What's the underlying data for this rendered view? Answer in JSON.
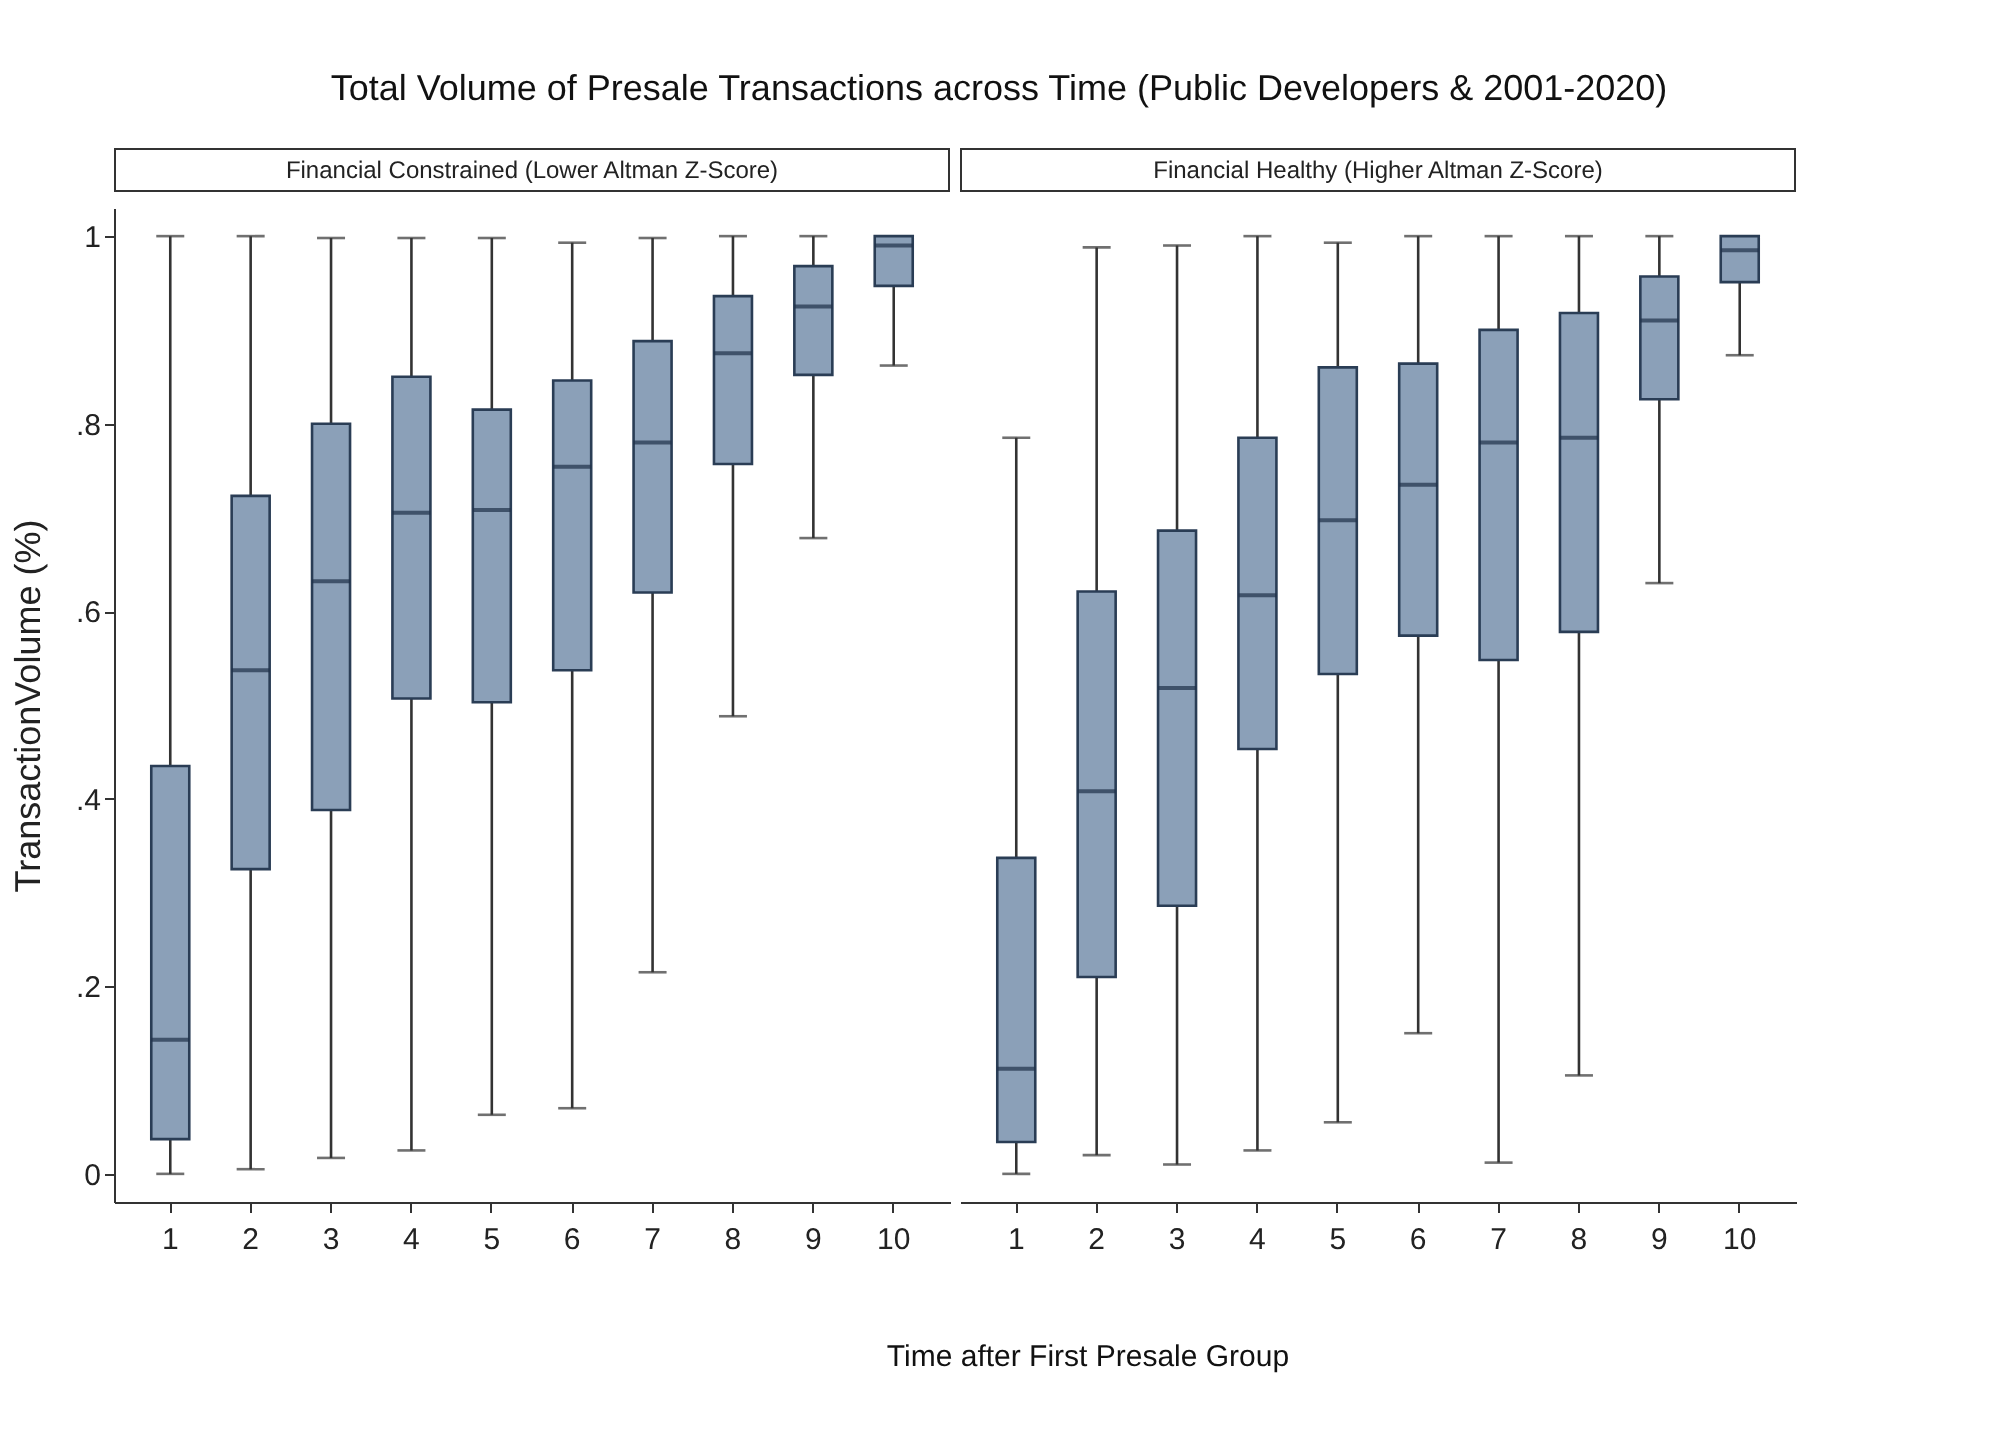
{
  "chart_data": [
    {
      "type": "box",
      "title": "Total Volume of Presale Transactions across Time (Public Developers & 2001-2020)",
      "subtitle": "Financial Constrained (Lower Altman Z-Score)",
      "xlabel": "Time after First Presale Group",
      "ylabel": "TransactionVolume (%)",
      "color": "#8ba0b8",
      "categories": [
        "1",
        "2",
        "3",
        "4",
        "5",
        "6",
        "7",
        "8",
        "9",
        "10"
      ],
      "ylim": [
        -0.03,
        1.03
      ],
      "yticks": [
        0,
        {
          "value": 0.2,
          "label": ".2"
        },
        {
          "value": 0.4,
          "label": ".4"
        },
        {
          "value": 0.6,
          "label": ".6"
        },
        {
          "value": 0.8,
          "label": ".8"
        },
        1
      ],
      "grid": false,
      "boxes": [
        {
          "low": 0,
          "q1": 0.037,
          "median": 0.143,
          "q3": 0.435,
          "high": 1
        },
        {
          "low": 0.005,
          "q1": 0.325,
          "median": 0.537,
          "q3": 0.723,
          "high": 1
        },
        {
          "low": 0.017,
          "q1": 0.388,
          "median": 0.632,
          "q3": 0.8,
          "high": 0.998
        },
        {
          "low": 0.025,
          "q1": 0.507,
          "median": 0.705,
          "q3": 0.85,
          "high": 0.998
        },
        {
          "low": 0.063,
          "q1": 0.503,
          "median": 0.708,
          "q3": 0.815,
          "high": 0.998
        },
        {
          "low": 0.07,
          "q1": 0.537,
          "median": 0.754,
          "q3": 0.846,
          "high": 0.993
        },
        {
          "low": 0.215,
          "q1": 0.62,
          "median": 0.78,
          "q3": 0.888,
          "high": 0.998
        },
        {
          "low": 0.488,
          "q1": 0.757,
          "median": 0.875,
          "q3": 0.936,
          "high": 1
        },
        {
          "low": 0.678,
          "q1": 0.852,
          "median": 0.925,
          "q3": 0.968,
          "high": 1
        },
        {
          "low": 0.862,
          "q1": 0.947,
          "median": 0.99,
          "q3": 1,
          "high": 1
        }
      ]
    },
    {
      "type": "box",
      "subtitle": "Financial Healthy (Higher Altman Z-Score)",
      "color": "#8ba0b8",
      "categories": [
        "1",
        "2",
        "3",
        "4",
        "5",
        "6",
        "7",
        "8",
        "9",
        "10"
      ],
      "ylim": [
        -0.03,
        1.03
      ],
      "grid": false,
      "tick_labels": "x",
      "boxes": [
        {
          "low": 0,
          "q1": 0.034,
          "median": 0.112,
          "q3": 0.337,
          "high": 0.785
        },
        {
          "low": 0.02,
          "q1": 0.21,
          "median": 0.408,
          "q3": 0.621,
          "high": 0.988
        },
        {
          "low": 0.01,
          "q1": 0.286,
          "median": 0.518,
          "q3": 0.686,
          "high": 0.99
        },
        {
          "low": 0.025,
          "q1": 0.453,
          "median": 0.617,
          "q3": 0.785,
          "high": 1
        },
        {
          "low": 0.055,
          "q1": 0.533,
          "median": 0.697,
          "q3": 0.86,
          "high": 0.993
        },
        {
          "low": 0.15,
          "q1": 0.574,
          "median": 0.735,
          "q3": 0.864,
          "high": 1
        },
        {
          "low": 0.012,
          "q1": 0.548,
          "median": 0.78,
          "q3": 0.9,
          "high": 1
        },
        {
          "low": 0.105,
          "q1": 0.578,
          "median": 0.785,
          "q3": 0.918,
          "high": 1
        },
        {
          "low": 0.63,
          "q1": 0.826,
          "median": 0.91,
          "q3": 0.957,
          "high": 1
        },
        {
          "low": 0.873,
          "q1": 0.951,
          "median": 0.985,
          "q3": 1,
          "high": 1
        }
      ]
    }
  ]
}
